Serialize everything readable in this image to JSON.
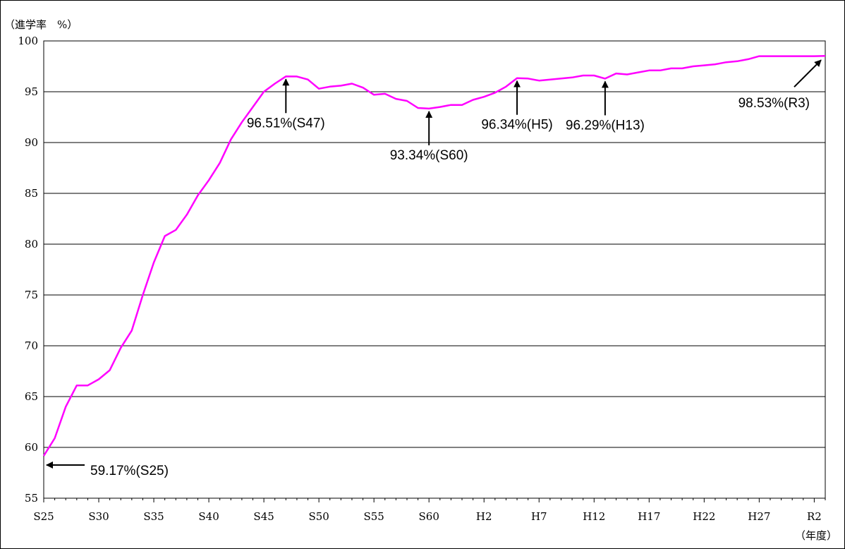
{
  "chart_data": {
    "type": "line",
    "title": "",
    "ylabel": "（進学率　%）",
    "xlabel": "（年度）",
    "ylim": [
      55,
      100
    ],
    "yticks": [
      55,
      60,
      65,
      70,
      75,
      80,
      85,
      90,
      95,
      100
    ],
    "grid": true,
    "line_color": "#ff00ff",
    "x_tick_labels": [
      "S25",
      "S30",
      "S35",
      "S40",
      "S45",
      "S50",
      "S55",
      "S60",
      "H2",
      "H7",
      "H12",
      "H17",
      "H22",
      "H27",
      "R2"
    ],
    "x": [
      "S25",
      "S26",
      "S27",
      "S28",
      "S29",
      "S30",
      "S31",
      "S32",
      "S33",
      "S34",
      "S35",
      "S36",
      "S37",
      "S38",
      "S39",
      "S40",
      "S41",
      "S42",
      "S43",
      "S44",
      "S45",
      "S46",
      "S47",
      "S48",
      "S49",
      "S50",
      "S51",
      "S52",
      "S53",
      "S54",
      "S55",
      "S56",
      "S57",
      "S58",
      "S59",
      "S60",
      "S61",
      "S62",
      "S63",
      "H1",
      "H2",
      "H3",
      "H4",
      "H5",
      "H6",
      "H7",
      "H8",
      "H9",
      "H10",
      "H11",
      "H12",
      "H13",
      "H14",
      "H15",
      "H16",
      "H17",
      "H18",
      "H19",
      "H20",
      "H21",
      "H22",
      "H23",
      "H24",
      "H25",
      "H26",
      "H27",
      "H28",
      "H29",
      "H30",
      "R1",
      "R2",
      "R3"
    ],
    "series": [
      {
        "values": [
          59.17,
          60.9,
          64.0,
          66.1,
          66.1,
          66.7,
          67.6,
          69.8,
          71.5,
          75.0,
          78.2,
          80.8,
          81.4,
          82.9,
          84.8,
          86.3,
          88.0,
          90.3,
          92.0,
          93.5,
          95.0,
          95.8,
          96.51,
          96.5,
          96.2,
          95.3,
          95.5,
          95.6,
          95.8,
          95.4,
          94.7,
          94.8,
          94.3,
          94.1,
          93.4,
          93.34,
          93.5,
          93.7,
          93.7,
          94.2,
          94.5,
          94.9,
          95.5,
          96.34,
          96.3,
          96.1,
          96.2,
          96.3,
          96.4,
          96.6,
          96.6,
          96.29,
          96.8,
          96.7,
          96.9,
          97.1,
          97.1,
          97.3,
          97.3,
          97.5,
          97.6,
          97.7,
          97.9,
          98.0,
          98.2,
          98.5,
          98.5,
          98.5,
          98.5,
          98.5,
          98.5,
          98.53
        ]
      }
    ],
    "annotations": [
      {
        "label": "59.17%(S25)",
        "x": "S25",
        "value": 59.17,
        "arrow": "left"
      },
      {
        "label": "96.51%(S47)",
        "x": "S47",
        "value": 96.51,
        "arrow": "up"
      },
      {
        "label": "93.34%(S60)",
        "x": "S60",
        "value": 93.34,
        "arrow": "up"
      },
      {
        "label": "96.34%(H5)",
        "x": "H5",
        "value": 96.34,
        "arrow": "up"
      },
      {
        "label": "96.29%(H13)",
        "x": "H13",
        "value": 96.29,
        "arrow": "up"
      },
      {
        "label": "98.53%(R3)",
        "x": "R3",
        "value": 98.53,
        "arrow": "diagonal"
      }
    ]
  }
}
